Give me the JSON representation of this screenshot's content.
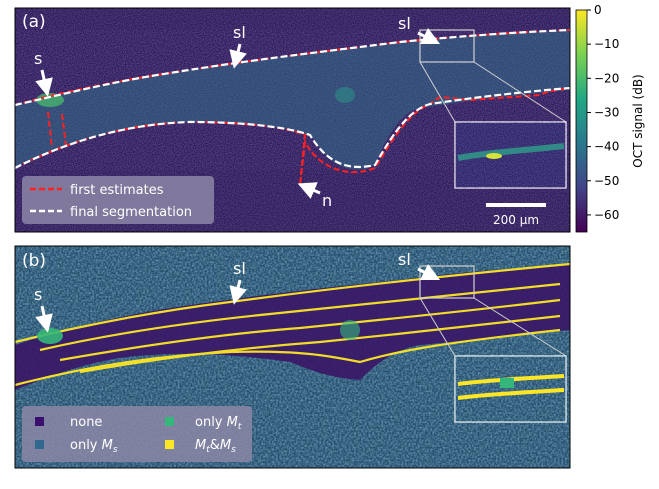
{
  "panel_a": {
    "label": "(a)",
    "annotations": {
      "s": "s",
      "sl_left": "sl",
      "sl_right": "sl",
      "n": "n"
    },
    "legend": {
      "first_estimates": "first estimates",
      "final_segmentation": "final segmentation"
    },
    "legend_colors": {
      "first_estimates": "#ff2020",
      "final_segmentation": "#ffffff"
    },
    "scalebar_label": "200 µm"
  },
  "panel_b": {
    "label": "(b)",
    "annotations": {
      "s": "s",
      "sl_left": "sl",
      "sl_right": "sl"
    },
    "legend": {
      "none": "none",
      "only_ms_prefix": "only ",
      "only_ms_var": "M",
      "only_ms_sub": "s",
      "only_mt_prefix": "only ",
      "only_mt_var": "M",
      "only_mt_sub": "t",
      "both_a": "M",
      "both_a_sub": "t",
      "both_mid": "&",
      "both_b": "M",
      "both_b_sub": "s"
    },
    "legend_colors": {
      "none": "#3b0f6f",
      "only_ms": "#31688e",
      "only_mt": "#35b779",
      "both": "#fde725"
    }
  },
  "colorbar": {
    "label": "OCT signal (dB)",
    "ticks": [
      "0",
      "−10",
      "−20",
      "−30",
      "−40",
      "−50",
      "−60"
    ],
    "range": [
      -65,
      0
    ]
  },
  "colors": {
    "background_dark": "#2b1a58",
    "tissue_teal": "#2c7a8c",
    "highlight_green": "#49c26b",
    "highlight_yellow": "#f2e43a"
  }
}
